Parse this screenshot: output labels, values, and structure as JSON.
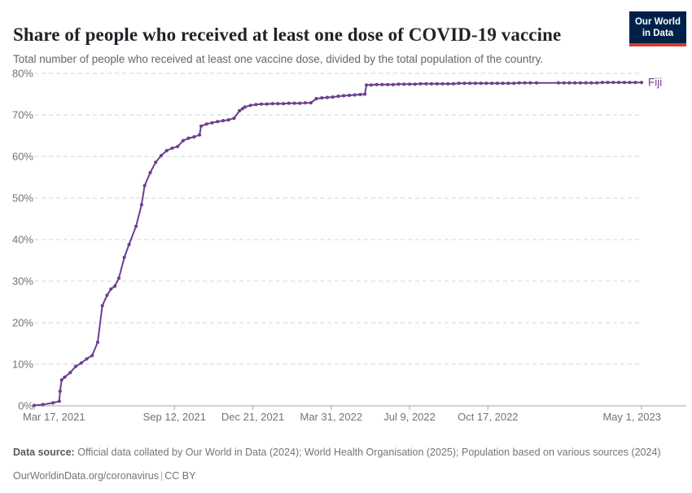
{
  "header": {
    "title": "Share of people who received at least one dose of COVID-19 vaccine",
    "subtitle": "Total number of people who received at least one vaccine dose, divided by the total population of the country."
  },
  "logo": {
    "line1": "Our World",
    "line2": "in Data",
    "bg_color": "#002147",
    "accent_color": "#d73c2c"
  },
  "chart_data": {
    "type": "line",
    "title": "Share of people who received at least one dose of COVID-19 vaccine",
    "xlabel": "",
    "ylabel": "",
    "ylim": [
      0,
      80
    ],
    "y_ticks": [
      0,
      10,
      20,
      30,
      40,
      50,
      60,
      70,
      80
    ],
    "y_tick_suffix": "%",
    "xlim": [
      "2021-03-17",
      "2023-05-01"
    ],
    "x_ticks": [
      {
        "date": "2021-03-17",
        "label": "Mar 17, 2021"
      },
      {
        "date": "2021-09-12",
        "label": "Sep 12, 2021"
      },
      {
        "date": "2021-12-21",
        "label": "Dec 21, 2021"
      },
      {
        "date": "2022-03-31",
        "label": "Mar 31, 2022"
      },
      {
        "date": "2022-07-09",
        "label": "Jul 9, 2022"
      },
      {
        "date": "2022-10-17",
        "label": "Oct 17, 2022"
      },
      {
        "date": "2023-05-01",
        "label": "May 1, 2023"
      }
    ],
    "grid": "horizontal-dashed",
    "legend_position": "line-end-label",
    "series": [
      {
        "name": "Fiji",
        "color": "#6d3e91",
        "points": [
          [
            "2021-03-17",
            0.1
          ],
          [
            "2021-03-28",
            0.3
          ],
          [
            "2021-04-10",
            0.7
          ],
          [
            "2021-04-18",
            1.1
          ],
          [
            "2021-04-19",
            3.5
          ],
          [
            "2021-04-21",
            6.2
          ],
          [
            "2021-04-25",
            6.9
          ],
          [
            "2021-05-02",
            8.0
          ],
          [
            "2021-05-09",
            9.5
          ],
          [
            "2021-05-16",
            10.3
          ],
          [
            "2021-05-23",
            11.3
          ],
          [
            "2021-05-30",
            12.1
          ],
          [
            "2021-06-06",
            15.3
          ],
          [
            "2021-06-12",
            24.1
          ],
          [
            "2021-06-18",
            26.6
          ],
          [
            "2021-06-23",
            28.1
          ],
          [
            "2021-06-28",
            28.8
          ],
          [
            "2021-07-03",
            30.7
          ],
          [
            "2021-07-10",
            35.7
          ],
          [
            "2021-07-16",
            38.8
          ],
          [
            "2021-07-25",
            43.2
          ],
          [
            "2021-08-01",
            48.4
          ],
          [
            "2021-08-05",
            53.0
          ],
          [
            "2021-08-12",
            56.1
          ],
          [
            "2021-08-19",
            58.6
          ],
          [
            "2021-08-26",
            60.2
          ],
          [
            "2021-09-02",
            61.4
          ],
          [
            "2021-09-09",
            62.0
          ],
          [
            "2021-09-16",
            62.4
          ],
          [
            "2021-09-23",
            63.8
          ],
          [
            "2021-09-30",
            64.4
          ],
          [
            "2021-10-07",
            64.7
          ],
          [
            "2021-10-14",
            65.2
          ],
          [
            "2021-10-16",
            67.3
          ],
          [
            "2021-10-23",
            67.8
          ],
          [
            "2021-10-30",
            68.1
          ],
          [
            "2021-11-06",
            68.4
          ],
          [
            "2021-11-13",
            68.6
          ],
          [
            "2021-11-20",
            68.8
          ],
          [
            "2021-11-27",
            69.2
          ],
          [
            "2021-12-04",
            71.0
          ],
          [
            "2021-12-08",
            71.5
          ],
          [
            "2021-12-11",
            71.9
          ],
          [
            "2021-12-18",
            72.3
          ],
          [
            "2021-12-25",
            72.5
          ],
          [
            "2022-01-01",
            72.6
          ],
          [
            "2022-01-08",
            72.6
          ],
          [
            "2022-01-15",
            72.7
          ],
          [
            "2022-01-22",
            72.7
          ],
          [
            "2022-01-29",
            72.7
          ],
          [
            "2022-02-05",
            72.8
          ],
          [
            "2022-02-12",
            72.8
          ],
          [
            "2022-02-19",
            72.8
          ],
          [
            "2022-02-26",
            72.9
          ],
          [
            "2022-03-05",
            72.9
          ],
          [
            "2022-03-12",
            73.9
          ],
          [
            "2022-03-19",
            74.1
          ],
          [
            "2022-03-26",
            74.2
          ],
          [
            "2022-04-02",
            74.3
          ],
          [
            "2022-04-09",
            74.5
          ],
          [
            "2022-04-16",
            74.6
          ],
          [
            "2022-04-23",
            74.7
          ],
          [
            "2022-04-30",
            74.8
          ],
          [
            "2022-05-07",
            74.9
          ],
          [
            "2022-05-13",
            75.0
          ],
          [
            "2022-05-15",
            77.2
          ],
          [
            "2022-05-21",
            77.2
          ],
          [
            "2022-05-28",
            77.3
          ],
          [
            "2022-06-04",
            77.3
          ],
          [
            "2022-06-11",
            77.3
          ],
          [
            "2022-06-18",
            77.3
          ],
          [
            "2022-06-25",
            77.4
          ],
          [
            "2022-07-02",
            77.4
          ],
          [
            "2022-07-09",
            77.4
          ],
          [
            "2022-07-16",
            77.4
          ],
          [
            "2022-07-23",
            77.5
          ],
          [
            "2022-07-30",
            77.5
          ],
          [
            "2022-08-06",
            77.5
          ],
          [
            "2022-08-13",
            77.5
          ],
          [
            "2022-08-20",
            77.5
          ],
          [
            "2022-08-27",
            77.5
          ],
          [
            "2022-09-03",
            77.5
          ],
          [
            "2022-09-10",
            77.6
          ],
          [
            "2022-09-17",
            77.6
          ],
          [
            "2022-09-24",
            77.6
          ],
          [
            "2022-10-01",
            77.6
          ],
          [
            "2022-10-08",
            77.6
          ],
          [
            "2022-10-15",
            77.6
          ],
          [
            "2022-10-22",
            77.6
          ],
          [
            "2022-10-29",
            77.6
          ],
          [
            "2022-11-05",
            77.6
          ],
          [
            "2022-11-12",
            77.6
          ],
          [
            "2022-11-19",
            77.6
          ],
          [
            "2022-11-26",
            77.7
          ],
          [
            "2022-12-03",
            77.7
          ],
          [
            "2022-12-10",
            77.7
          ],
          [
            "2022-12-18",
            77.7
          ],
          [
            "2023-01-15",
            77.7
          ],
          [
            "2023-01-22",
            77.7
          ],
          [
            "2023-01-29",
            77.7
          ],
          [
            "2023-02-05",
            77.7
          ],
          [
            "2023-02-12",
            77.7
          ],
          [
            "2023-02-19",
            77.7
          ],
          [
            "2023-02-26",
            77.7
          ],
          [
            "2023-03-05",
            77.7
          ],
          [
            "2023-03-12",
            77.8
          ],
          [
            "2023-03-19",
            77.8
          ],
          [
            "2023-03-26",
            77.8
          ],
          [
            "2023-04-02",
            77.8
          ],
          [
            "2023-04-09",
            77.8
          ],
          [
            "2023-04-16",
            77.8
          ],
          [
            "2023-04-23",
            77.8
          ],
          [
            "2023-05-01",
            77.8
          ]
        ]
      }
    ]
  },
  "footer": {
    "data_source_label": "Data source:",
    "data_source_text": "Official data collated by Our World in Data (2024); World Health Organisation (2025); Population based on various sources (2024)",
    "link": "OurWorldinData.org/coronavirus",
    "separator": "|",
    "license": "CC BY"
  }
}
